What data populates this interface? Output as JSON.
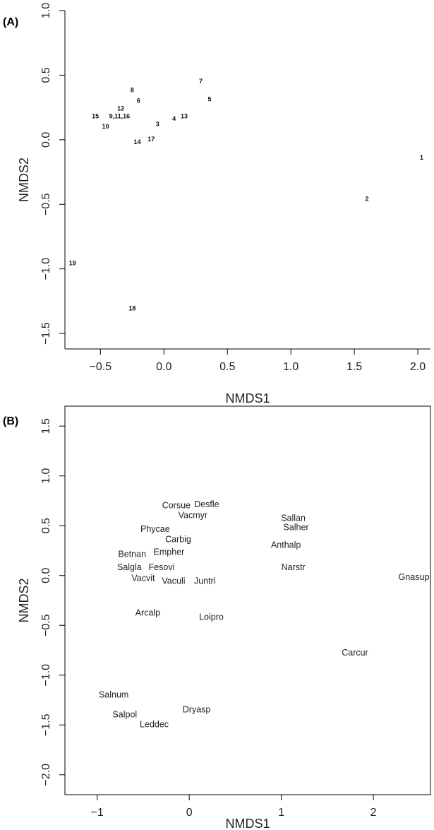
{
  "chart_data": [
    {
      "type": "scatter",
      "panel_label": "(A)",
      "xlabel": "NMDS1",
      "ylabel": "NMDS2",
      "xlim": [
        -0.78,
        2.1
      ],
      "ylim": [
        -1.62,
        1.0
      ],
      "xticks": [
        -0.5,
        0.0,
        0.5,
        1.0,
        1.5,
        2.0
      ],
      "xtick_labels": [
        "−0.5",
        "0.0",
        "0.5",
        "1.0",
        "1.5",
        "2.0"
      ],
      "yticks": [
        -1.5,
        -1.0,
        -0.5,
        0.0,
        0.5,
        1.0
      ],
      "ytick_labels": [
        "−1.5",
        "−1.0",
        "−0.5",
        "0.0",
        "0.5",
        "1.0"
      ],
      "box": "bottom-left",
      "points": [
        {
          "label": "1",
          "x": 2.03,
          "y": -0.14
        },
        {
          "label": "2",
          "x": 1.6,
          "y": -0.46
        },
        {
          "label": "3",
          "x": -0.05,
          "y": 0.12
        },
        {
          "label": "4",
          "x": 0.08,
          "y": 0.16
        },
        {
          "label": "5",
          "x": 0.36,
          "y": 0.31
        },
        {
          "label": "6",
          "x": -0.2,
          "y": 0.3
        },
        {
          "label": "7",
          "x": 0.29,
          "y": 0.45
        },
        {
          "label": "8",
          "x": -0.25,
          "y": 0.38
        },
        {
          "label": "9,11,16",
          "x": -0.35,
          "y": 0.18
        },
        {
          "label": "10",
          "x": -0.46,
          "y": 0.1
        },
        {
          "label": "12",
          "x": -0.34,
          "y": 0.24
        },
        {
          "label": "13",
          "x": 0.16,
          "y": 0.18
        },
        {
          "label": "14",
          "x": -0.21,
          "y": -0.02
        },
        {
          "label": "15",
          "x": -0.54,
          "y": 0.18
        },
        {
          "label": "17",
          "x": -0.1,
          "y": 0.0
        },
        {
          "label": "18",
          "x": -0.25,
          "y": -1.31
        },
        {
          "label": "19",
          "x": -0.72,
          "y": -0.96
        }
      ]
    },
    {
      "type": "scatter",
      "panel_label": "(B)",
      "xlabel": "NMDS1",
      "ylabel": "NMDS2",
      "xlim": [
        -1.35,
        2.62
      ],
      "ylim": [
        -2.2,
        1.7
      ],
      "xticks": [
        -1,
        0,
        1,
        2
      ],
      "xtick_labels": [
        "−1",
        "0",
        "1",
        "2"
      ],
      "yticks": [
        -2.0,
        -1.5,
        -1.0,
        -0.5,
        0.0,
        0.5,
        1.0,
        1.5
      ],
      "ytick_labels": [
        "−2.0",
        "−1.5",
        "−1.0",
        "−0.5",
        "0.0",
        "0.5",
        "1.0",
        "1.5"
      ],
      "box": "full",
      "points": [
        {
          "label": "Corsue",
          "x": -0.14,
          "y": 0.7
        },
        {
          "label": "Desfle",
          "x": 0.19,
          "y": 0.71
        },
        {
          "label": "Vacmyr",
          "x": 0.04,
          "y": 0.6
        },
        {
          "label": "Phycae",
          "x": -0.37,
          "y": 0.46
        },
        {
          "label": "Carbig",
          "x": -0.12,
          "y": 0.36
        },
        {
          "label": "Betnan",
          "x": -0.62,
          "y": 0.21
        },
        {
          "label": "Empher",
          "x": -0.22,
          "y": 0.23
        },
        {
          "label": "Salgla",
          "x": -0.65,
          "y": 0.08
        },
        {
          "label": "Fesovi",
          "x": -0.3,
          "y": 0.08
        },
        {
          "label": "Vacvit",
          "x": -0.5,
          "y": -0.03
        },
        {
          "label": "Vaculi",
          "x": -0.17,
          "y": -0.06
        },
        {
          "label": "Juntri",
          "x": 0.17,
          "y": -0.06
        },
        {
          "label": "Arcalp",
          "x": -0.45,
          "y": -0.38
        },
        {
          "label": "Loipro",
          "x": 0.24,
          "y": -0.42
        },
        {
          "label": "Sallan",
          "x": 1.13,
          "y": 0.57
        },
        {
          "label": "Salher",
          "x": 1.16,
          "y": 0.48
        },
        {
          "label": "Anthalp",
          "x": 1.05,
          "y": 0.3
        },
        {
          "label": "Narstr",
          "x": 1.13,
          "y": 0.08
        },
        {
          "label": "Gnasup",
          "x": 2.44,
          "y": -0.02
        },
        {
          "label": "Carcur",
          "x": 1.8,
          "y": -0.78
        },
        {
          "label": "Salnum",
          "x": -0.82,
          "y": -1.2
        },
        {
          "label": "Salpol",
          "x": -0.7,
          "y": -1.4
        },
        {
          "label": "Dryasp",
          "x": 0.08,
          "y": -1.35
        },
        {
          "label": "Leddec",
          "x": -0.38,
          "y": -1.5
        }
      ]
    }
  ]
}
